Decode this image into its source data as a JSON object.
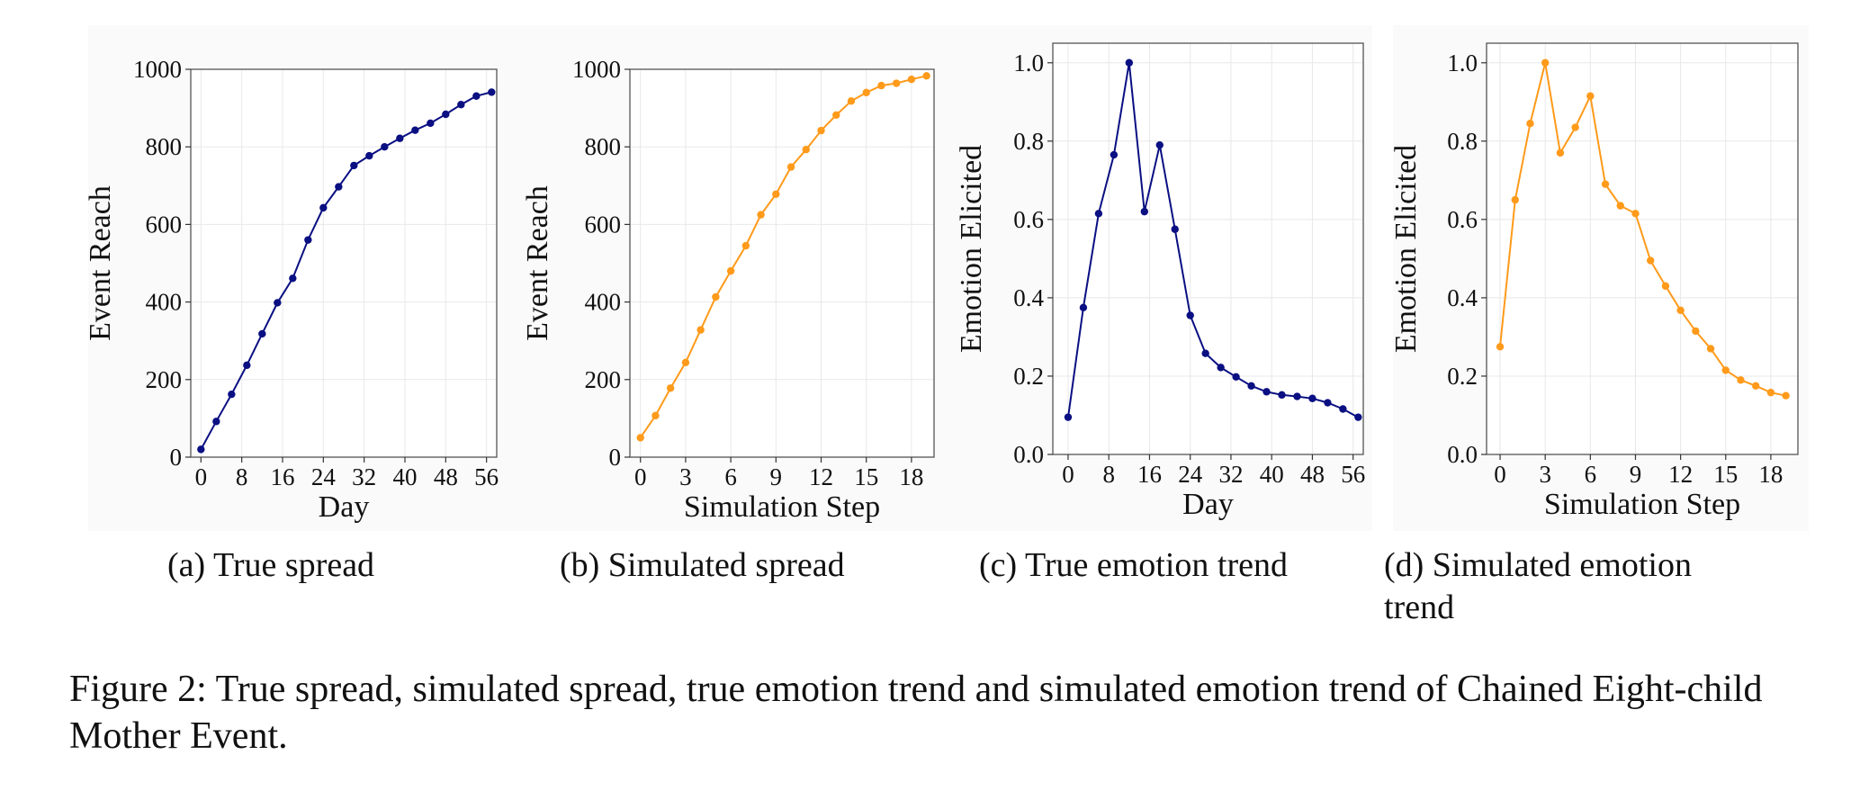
{
  "figure_caption": "Figure 2: True spread, simulated spread, true emotion trend and simulated emotion trend of Chained Eight-child Mother Event.",
  "chart_data": [
    {
      "type": "line",
      "caption": "(a) True spread",
      "xlabel": "Day",
      "ylabel": "Event Reach",
      "xlim": [
        -2,
        58
      ],
      "ylim": [
        0,
        1000
      ],
      "xticks": [
        0,
        8,
        16,
        24,
        32,
        40,
        48,
        56
      ],
      "yticks": [
        0,
        200,
        400,
        600,
        800,
        1000
      ],
      "ytick_labels": [
        "0",
        "200",
        "400",
        "600",
        "800",
        "1000"
      ],
      "grid": true,
      "color": "#0a0f82",
      "x": [
        0,
        3,
        6,
        9,
        12,
        15,
        18,
        21,
        24,
        27,
        30,
        33,
        36,
        39,
        42,
        45,
        48,
        51,
        54,
        57
      ],
      "y": [
        20,
        92,
        162,
        237,
        318,
        398,
        461,
        560,
        643,
        697,
        752,
        777,
        800,
        822,
        843,
        861,
        884,
        909,
        931,
        941
      ]
    },
    {
      "type": "line",
      "caption": "(b) Simulated spread",
      "xlabel": "Simulation Step",
      "ylabel": "Event Reach",
      "xlim": [
        -0.7,
        19.5
      ],
      "ylim": [
        0,
        1000
      ],
      "xticks": [
        0,
        3,
        6,
        9,
        12,
        15,
        18
      ],
      "yticks": [
        0,
        200,
        400,
        600,
        800,
        1000
      ],
      "ytick_labels": [
        "0",
        "200",
        "400",
        "600",
        "800",
        "1000"
      ],
      "grid": true,
      "color": "#ff9a1a",
      "x": [
        0,
        1,
        2,
        3,
        4,
        5,
        6,
        7,
        8,
        9,
        10,
        11,
        12,
        13,
        14,
        15,
        16,
        17,
        18,
        19
      ],
      "y": [
        50,
        107,
        178,
        244,
        328,
        413,
        480,
        545,
        625,
        678,
        748,
        793,
        842,
        882,
        918,
        940,
        958,
        964,
        974,
        983
      ]
    },
    {
      "type": "line",
      "caption": "(c) True emotion trend",
      "xlabel": "Day",
      "ylabel": "Emotion Elicited",
      "xlim": [
        -3,
        58
      ],
      "ylim": [
        0,
        1.05
      ],
      "xticks": [
        0,
        8,
        16,
        24,
        32,
        40,
        48,
        56
      ],
      "yticks": [
        0,
        0.2,
        0.4,
        0.6,
        0.8,
        1.0
      ],
      "ytick_labels": [
        "0.0",
        "0.2",
        "0.4",
        "0.6",
        "0.8",
        "1.0"
      ],
      "grid": true,
      "color": "#0a0f82",
      "x": [
        0,
        3,
        6,
        9,
        12,
        15,
        18,
        21,
        24,
        27,
        30,
        33,
        36,
        39,
        42,
        45,
        48,
        51,
        54,
        57
      ],
      "y": [
        0.095,
        0.375,
        0.615,
        0.765,
        1.0,
        0.62,
        0.79,
        0.575,
        0.355,
        0.258,
        0.222,
        0.198,
        0.175,
        0.16,
        0.152,
        0.148,
        0.143,
        0.132,
        0.116,
        0.095
      ]
    },
    {
      "type": "line",
      "caption": "(d) Simulated emotion trend",
      "xlabel": "Simulation Step",
      "ylabel": "Emotion Elicited",
      "xlim": [
        -0.9,
        19.8
      ],
      "ylim": [
        0,
        1.05
      ],
      "xticks": [
        0,
        3,
        6,
        9,
        12,
        15,
        18
      ],
      "yticks": [
        0,
        0.2,
        0.4,
        0.6,
        0.8,
        1.0
      ],
      "ytick_labels": [
        "0.0",
        "0.2",
        "0.4",
        "0.6",
        "0.8",
        "1.0"
      ],
      "grid": true,
      "color": "#ff9a1a",
      "x": [
        0,
        1,
        2,
        3,
        4,
        5,
        6,
        7,
        8,
        9,
        10,
        11,
        12,
        13,
        14,
        15,
        16,
        17,
        18,
        19
      ],
      "y": [
        0.275,
        0.65,
        0.845,
        1.0,
        0.77,
        0.835,
        0.915,
        0.69,
        0.635,
        0.615,
        0.495,
        0.43,
        0.368,
        0.315,
        0.27,
        0.215,
        0.19,
        0.175,
        0.158,
        0.15
      ]
    }
  ]
}
